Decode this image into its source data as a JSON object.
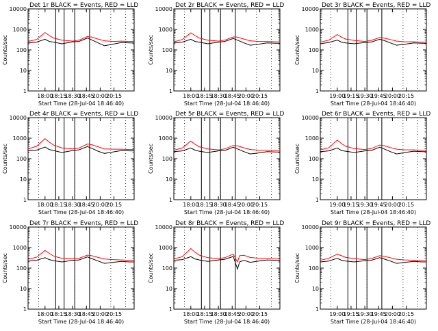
{
  "colors": {
    "events": "#000000",
    "lld": "#ff0000",
    "axes": "#000000",
    "background": "#ffffff"
  },
  "x_tick_labels": [
    "18:00",
    "18:15",
    "18:30",
    "18:45",
    "20:00",
    "20:15"
  ],
  "x_tick_labels_alt": [
    "19:00",
    "19:15",
    "19:30",
    "19:45",
    "20:00",
    "20:15"
  ],
  "y_tick_labels": [
    "1",
    "10",
    "100",
    "1000",
    "10000"
  ],
  "chart_data": [
    {
      "type": "line",
      "title": "Det 1r BLACK = Events, RED = LLD",
      "xlabel": "Start Time (28-Jul-04 18:46:40)",
      "ylabel": "Counts/sec",
      "xlim": [
        0,
        100
      ],
      "ylim": [
        1,
        10000
      ],
      "yscale": "log",
      "x_tick_labels_set": "x_tick_labels",
      "x": [
        0,
        8,
        16,
        20,
        24,
        32,
        42,
        48,
        56,
        60,
        66,
        72,
        80,
        88,
        96,
        100
      ],
      "series": [
        {
          "color": "#000000",
          "values": [
            220,
            240,
            330,
            260,
            240,
            200,
            250,
            260,
            380,
            310,
            220,
            160,
            190,
            230,
            220,
            220
          ]
        },
        {
          "color": "#ff0000",
          "values": [
            260,
            320,
            700,
            500,
            380,
            300,
            270,
            300,
            450,
            420,
            340,
            280,
            260,
            270,
            260,
            260
          ]
        }
      ],
      "vlines": [
        26,
        34,
        44,
        58
      ],
      "dotted_vlines": [
        10,
        44,
        78,
        92
      ]
    },
    {
      "type": "line",
      "title": "Det 2r BLACK = Events, RED = LLD",
      "xlabel": "Start Time (28-Jul-04 18:46:40)",
      "ylabel": "Counts/sec",
      "xlim": [
        0,
        100
      ],
      "ylim": [
        1,
        10000
      ],
      "yscale": "log",
      "x_tick_labels_set": "x_tick_labels",
      "x": [
        0,
        8,
        16,
        20,
        24,
        32,
        42,
        48,
        56,
        60,
        66,
        72,
        80,
        88,
        96,
        100
      ],
      "series": [
        {
          "color": "#000000",
          "values": [
            220,
            240,
            330,
            260,
            240,
            200,
            240,
            260,
            360,
            300,
            220,
            170,
            190,
            220,
            210,
            210
          ]
        },
        {
          "color": "#ff0000",
          "values": [
            250,
            320,
            680,
            500,
            380,
            300,
            270,
            300,
            430,
            420,
            340,
            280,
            260,
            260,
            250,
            250
          ]
        }
      ],
      "vlines": [
        26,
        34,
        44,
        58
      ],
      "dotted_vlines": [
        10,
        44,
        78,
        92
      ]
    },
    {
      "type": "line",
      "title": "Det 3r BLACK = Events, RED = LLD",
      "xlabel": "Start Time (28-Jul-04 18:46:40)",
      "ylabel": "Counts/sec",
      "xlim": [
        0,
        100
      ],
      "ylim": [
        1,
        10000
      ],
      "yscale": "log",
      "x_tick_labels_set": "x_tick_labels_alt",
      "x": [
        0,
        8,
        16,
        20,
        24,
        32,
        42,
        48,
        56,
        60,
        66,
        72,
        80,
        88,
        96,
        100
      ],
      "series": [
        {
          "color": "#000000",
          "values": [
            200,
            230,
            300,
            240,
            220,
            200,
            230,
            240,
            330,
            290,
            220,
            170,
            190,
            220,
            210,
            210
          ]
        },
        {
          "color": "#ff0000",
          "values": [
            240,
            300,
            560,
            420,
            340,
            290,
            260,
            290,
            400,
            380,
            320,
            270,
            250,
            250,
            240,
            240
          ]
        }
      ],
      "vlines": [
        26,
        34,
        44,
        58
      ],
      "dotted_vlines": [
        10,
        44,
        78,
        92
      ]
    },
    {
      "type": "line",
      "title": "Det 4r BLACK = Events, RED = LLD",
      "xlabel": "Start Time (28-Jul-04 18:46:40)",
      "ylabel": "Counts/sec",
      "xlim": [
        0,
        100
      ],
      "ylim": [
        1,
        10000
      ],
      "yscale": "log",
      "x_tick_labels_set": "x_tick_labels",
      "x": [
        0,
        8,
        16,
        20,
        24,
        32,
        42,
        48,
        56,
        60,
        66,
        72,
        80,
        88,
        96,
        100
      ],
      "series": [
        {
          "color": "#000000",
          "values": [
            240,
            260,
            370,
            280,
            250,
            200,
            250,
            270,
            390,
            320,
            230,
            180,
            210,
            250,
            240,
            240
          ]
        },
        {
          "color": "#ff0000",
          "values": [
            300,
            400,
            950,
            640,
            460,
            330,
            300,
            330,
            520,
            480,
            380,
            300,
            290,
            290,
            280,
            280
          ]
        }
      ],
      "vlines": [
        26,
        34,
        44,
        58
      ],
      "dotted_vlines": [
        10,
        44,
        78,
        92
      ]
    },
    {
      "type": "line",
      "title": "Det 5r BLACK = Events, RED = LLD",
      "xlabel": "Start Time (28-Jul-04 18:46:40)",
      "ylabel": "Counts/sec",
      "xlim": [
        0,
        100
      ],
      "ylim": [
        1,
        10000
      ],
      "yscale": "log",
      "x_tick_labels_set": "x_tick_labels",
      "x": [
        0,
        8,
        16,
        20,
        24,
        32,
        42,
        48,
        56,
        60,
        66,
        72,
        80,
        88,
        96,
        100
      ],
      "series": [
        {
          "color": "#000000",
          "values": [
            220,
            240,
            330,
            260,
            230,
            200,
            240,
            250,
            360,
            300,
            220,
            170,
            190,
            220,
            210,
            210
          ]
        },
        {
          "color": "#ff0000",
          "values": [
            260,
            330,
            720,
            500,
            380,
            300,
            270,
            300,
            440,
            420,
            340,
            280,
            260,
            260,
            250,
            250
          ]
        }
      ],
      "vlines": [
        26,
        34,
        44,
        58
      ],
      "dotted_vlines": [
        10,
        44,
        78,
        92
      ]
    },
    {
      "type": "line",
      "title": "Det 6r BLACK = Events, RED = LLD",
      "xlabel": "Start Time (28-Jul-04 18:46:40)",
      "ylabel": "Counts/sec",
      "xlim": [
        0,
        100
      ],
      "ylim": [
        1,
        10000
      ],
      "yscale": "log",
      "x_tick_labels_set": "x_tick_labels_alt",
      "x": [
        0,
        8,
        16,
        20,
        24,
        32,
        42,
        48,
        56,
        60,
        66,
        72,
        80,
        88,
        96,
        100
      ],
      "series": [
        {
          "color": "#000000",
          "values": [
            220,
            240,
            330,
            250,
            230,
            200,
            240,
            250,
            360,
            300,
            220,
            170,
            200,
            230,
            220,
            220
          ]
        },
        {
          "color": "#ff0000",
          "values": [
            270,
            340,
            800,
            540,
            400,
            310,
            280,
            310,
            460,
            430,
            350,
            290,
            270,
            270,
            260,
            260
          ]
        }
      ],
      "vlines": [
        26,
        34,
        44,
        58
      ],
      "dotted_vlines": [
        10,
        44,
        78,
        92
      ]
    },
    {
      "type": "line",
      "title": "Det 7r BLACK = Events, RED = LLD",
      "xlabel": "Start Time (28-Jul-04 18:46:40)",
      "ylabel": "Counts/sec",
      "xlim": [
        0,
        100
      ],
      "ylim": [
        1,
        10000
      ],
      "yscale": "log",
      "x_tick_labels_set": "x_tick_labels",
      "x": [
        0,
        8,
        16,
        20,
        24,
        32,
        42,
        48,
        56,
        60,
        66,
        72,
        80,
        88,
        96,
        100
      ],
      "series": [
        {
          "color": "#000000",
          "values": [
            220,
            240,
            320,
            260,
            230,
            200,
            240,
            250,
            350,
            290,
            220,
            170,
            190,
            210,
            200,
            200
          ]
        },
        {
          "color": "#ff0000",
          "values": [
            270,
            340,
            720,
            520,
            390,
            300,
            280,
            300,
            430,
            400,
            330,
            280,
            260,
            250,
            240,
            240
          ]
        }
      ],
      "vlines": [
        26,
        34,
        44,
        58
      ],
      "dotted_vlines": [
        10,
        44,
        78,
        92
      ]
    },
    {
      "type": "line",
      "title": "Det 8r BLACK = Events, RED = LLD",
      "xlabel": "Start Time (28-Jul-04 18:46:40)",
      "ylabel": "Counts/sec",
      "xlim": [
        0,
        100
      ],
      "ylim": [
        1,
        10000
      ],
      "yscale": "log",
      "x_tick_labels_set": "x_tick_labels",
      "x": [
        0,
        8,
        16,
        20,
        24,
        32,
        42,
        48,
        56,
        60,
        62,
        66,
        72,
        80,
        88,
        96,
        100
      ],
      "series": [
        {
          "color": "#000000",
          "values": [
            240,
            260,
            360,
            280,
            250,
            210,
            250,
            270,
            370,
            90,
            200,
            240,
            190,
            220,
            250,
            240,
            240
          ]
        },
        {
          "color": "#ff0000",
          "values": [
            280,
            360,
            900,
            600,
            430,
            320,
            290,
            320,
            480,
            200,
            400,
            420,
            330,
            300,
            290,
            280,
            280
          ]
        }
      ],
      "vlines": [
        26,
        34,
        44,
        58
      ],
      "dotted_vlines": [
        10,
        44,
        78,
        92
      ]
    },
    {
      "type": "line",
      "title": "Det 9r BLACK = Events, RED = LLD",
      "xlabel": "Start Time (28-Jul-04 18:46:40)",
      "ylabel": "Counts/sec",
      "xlim": [
        0,
        100
      ],
      "ylim": [
        1,
        10000
      ],
      "yscale": "log",
      "x_tick_labels_set": "x_tick_labels_alt",
      "x": [
        0,
        8,
        16,
        20,
        24,
        32,
        42,
        48,
        56,
        60,
        66,
        72,
        80,
        88,
        96,
        100
      ],
      "series": [
        {
          "color": "#000000",
          "values": [
            200,
            220,
            300,
            240,
            220,
            200,
            230,
            240,
            320,
            280,
            220,
            170,
            190,
            210,
            200,
            200
          ]
        },
        {
          "color": "#ff0000",
          "values": [
            240,
            300,
            480,
            400,
            330,
            290,
            260,
            290,
            400,
            380,
            320,
            270,
            250,
            240,
            230,
            230
          ]
        }
      ],
      "vlines": [
        26,
        34,
        44,
        58
      ],
      "dotted_vlines": [
        10,
        44,
        78,
        92
      ]
    }
  ]
}
